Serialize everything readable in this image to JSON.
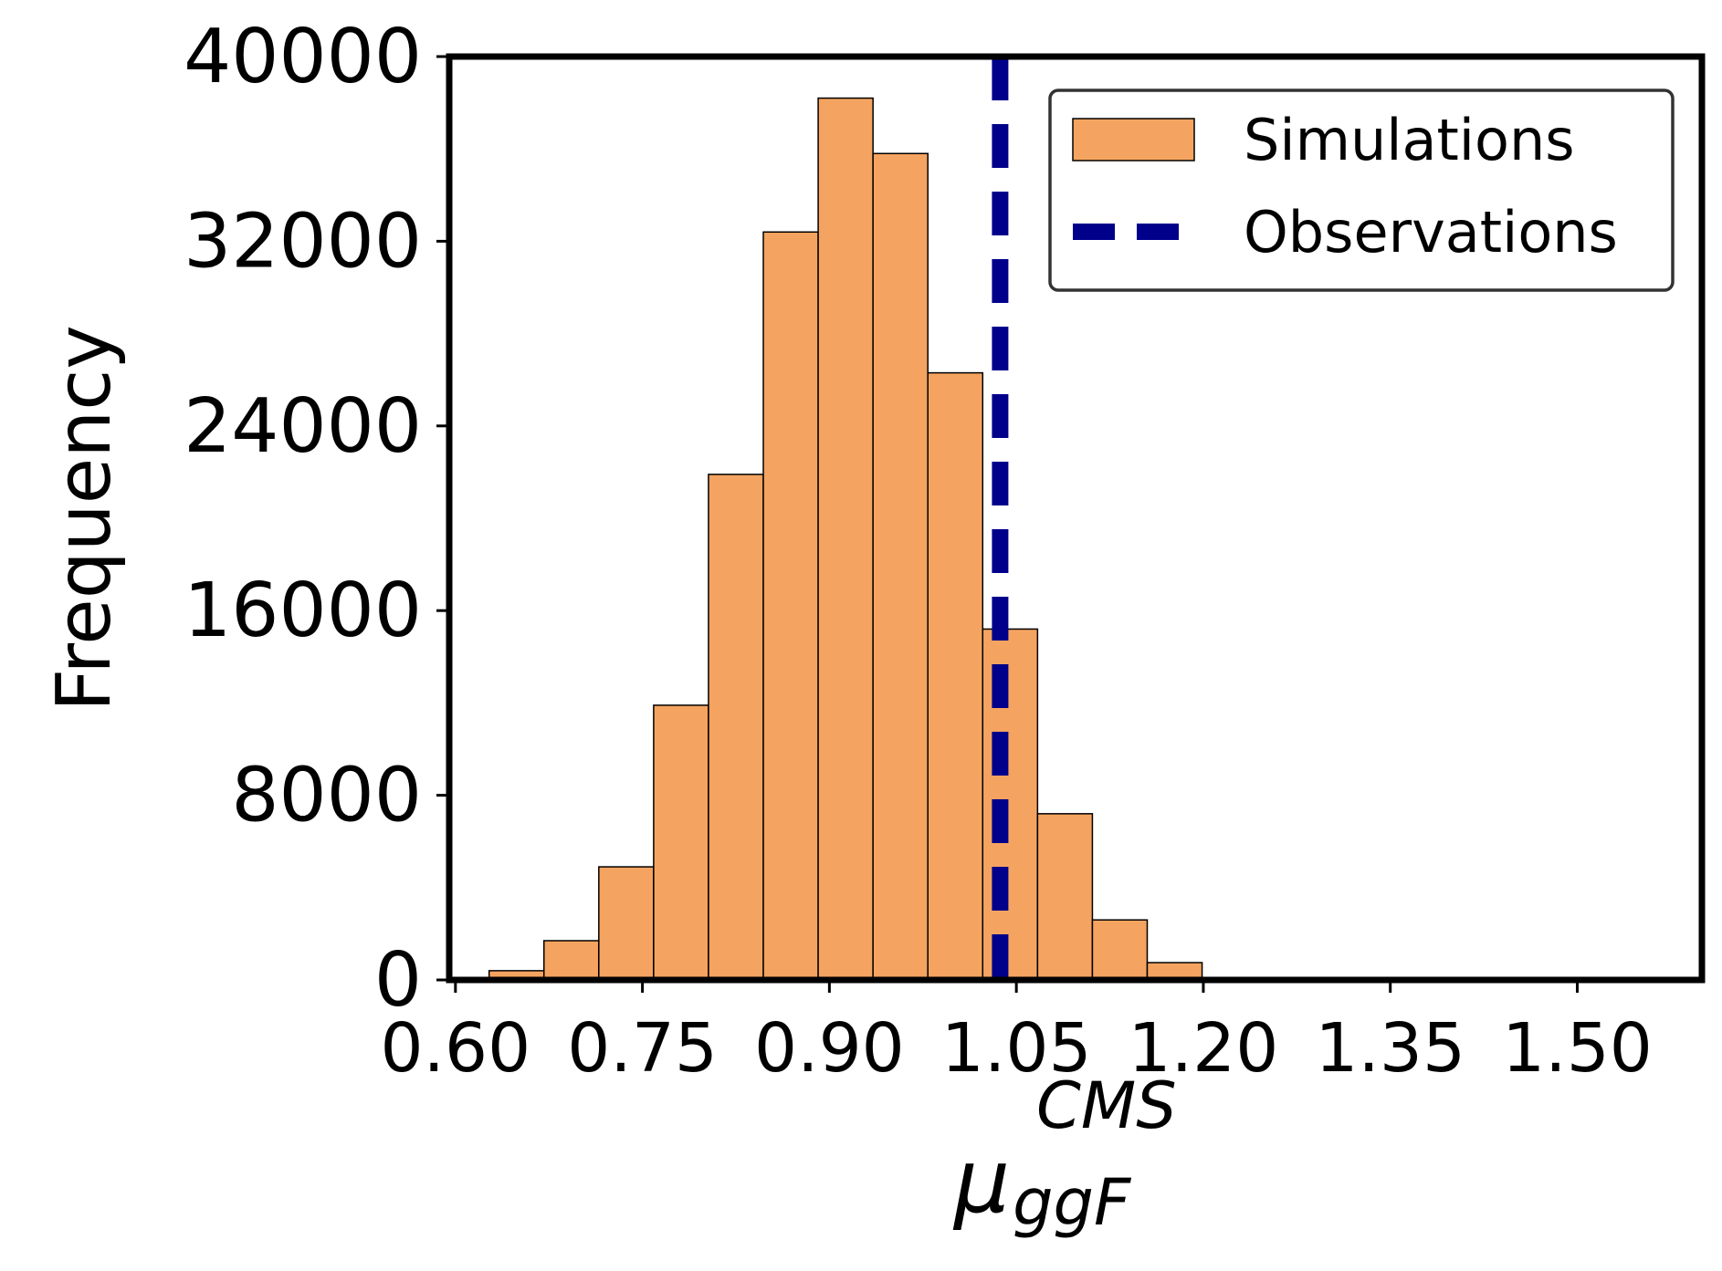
{
  "chart_data": {
    "type": "bar",
    "subtype": "histogram",
    "xlabel": {
      "base": "μ",
      "subscript": "ggF",
      "superscript": "CMS"
    },
    "ylabel": "Frequency",
    "xlim": [
      0.595,
      1.6
    ],
    "ylim": [
      0,
      40000
    ],
    "xticks": [
      0.6,
      0.75,
      0.9,
      1.05,
      1.2,
      1.35,
      1.5
    ],
    "xtick_labels": [
      "0.60",
      "0.75",
      "0.90",
      "1.05",
      "1.20",
      "1.35",
      "1.50"
    ],
    "yticks": [
      0,
      8000,
      16000,
      24000,
      32000,
      40000
    ],
    "ytick_labels": [
      "0",
      "8000",
      "16000",
      "24000",
      "32000",
      "40000"
    ],
    "bins": [
      {
        "x0": 0.627,
        "x1": 0.671,
        "value": 400
      },
      {
        "x0": 0.671,
        "x1": 0.715,
        "value": 1700
      },
      {
        "x0": 0.715,
        "x1": 0.759,
        "value": 4900
      },
      {
        "x0": 0.759,
        "x1": 0.803,
        "value": 11900
      },
      {
        "x0": 0.803,
        "x1": 0.847,
        "value": 21900
      },
      {
        "x0": 0.847,
        "x1": 0.891,
        "value": 32400
      },
      {
        "x0": 0.891,
        "x1": 0.935,
        "value": 38200
      },
      {
        "x0": 0.935,
        "x1": 0.979,
        "value": 35800
      },
      {
        "x0": 0.979,
        "x1": 1.023,
        "value": 26300
      },
      {
        "x0": 1.023,
        "x1": 1.067,
        "value": 15200
      },
      {
        "x0": 1.067,
        "x1": 1.111,
        "value": 7200
      },
      {
        "x0": 1.111,
        "x1": 1.155,
        "value": 2600
      },
      {
        "x0": 1.155,
        "x1": 1.199,
        "value": 750
      }
    ],
    "observation": 1.037,
    "legend": {
      "position": "top-right",
      "entries": [
        {
          "label": "Simulations",
          "kind": "bar"
        },
        {
          "label": "Observations",
          "kind": "dashed-line"
        }
      ]
    },
    "colors": {
      "bar_fill": "#F4A460",
      "bar_edge": "#000000",
      "observation_line": "#00008B",
      "axes": "#000000",
      "legend_border": "#333333"
    }
  }
}
